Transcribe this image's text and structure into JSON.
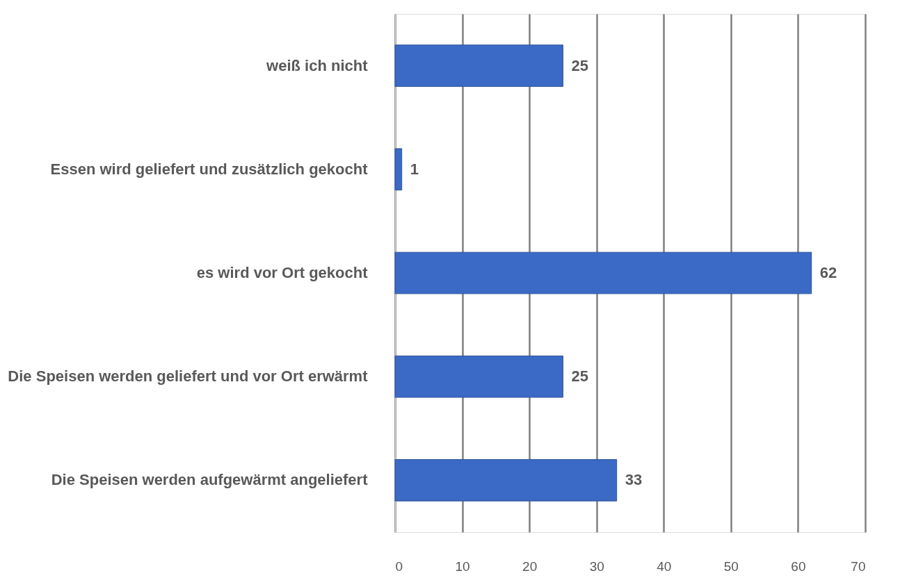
{
  "chart_data": {
    "type": "bar",
    "orientation": "horizontal",
    "categories": [
      "weiß ich nicht",
      "Essen wird geliefert und zusätzlich gekocht",
      "es wird vor Ort gekocht",
      "Die Speisen werden geliefert und vor Ort erwärmt",
      "Die Speisen werden aufgewärmt angeliefert"
    ],
    "values": [
      25,
      1,
      62,
      25,
      33
    ],
    "color": "#3b69c6",
    "xlim": [
      0,
      70
    ],
    "xticks": [
      0,
      10,
      20,
      30,
      40,
      50,
      60,
      70
    ],
    "grid": "x",
    "data_labels": true
  }
}
